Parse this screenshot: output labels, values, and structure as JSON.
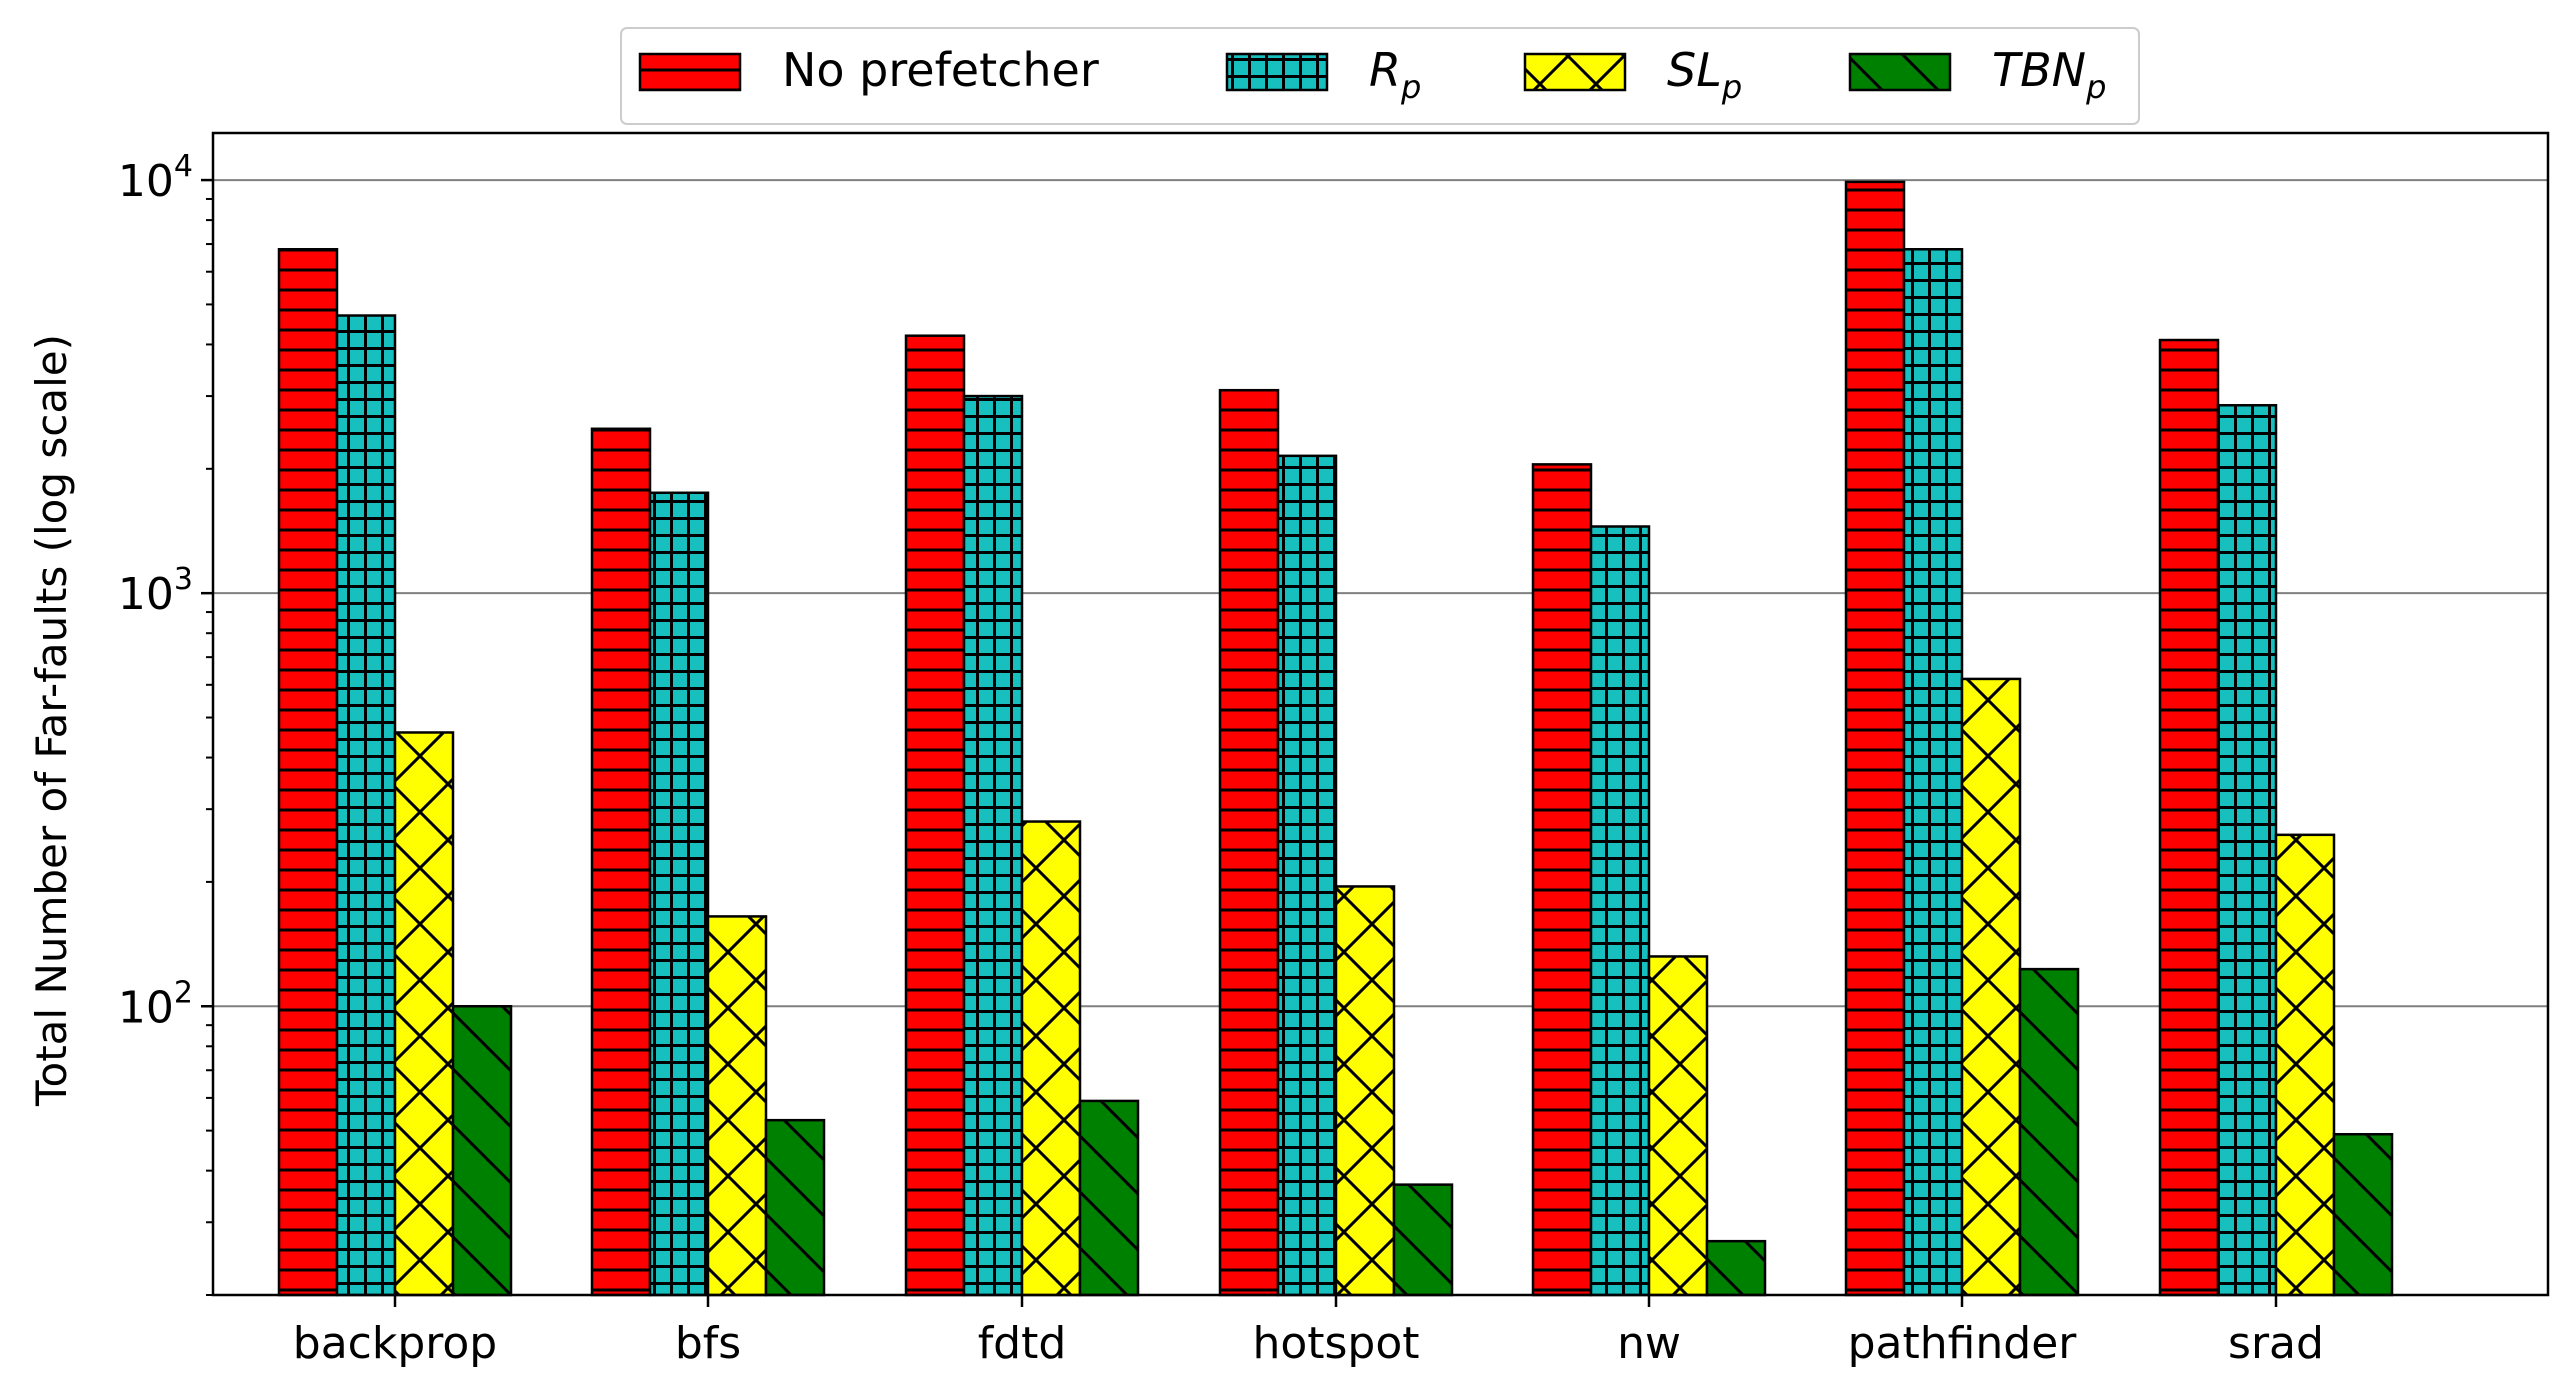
{
  "chart_data": {
    "type": "bar",
    "ylabel": "Total Number of Far-faults (log scale)",
    "xlabel": "",
    "yscale": "log",
    "ylim": [
      20,
      13000
    ],
    "yticks": [
      {
        "value": 100,
        "base": "10",
        "exp": "2"
      },
      {
        "value": 1000,
        "base": "10",
        "exp": "3"
      },
      {
        "value": 10000,
        "base": "10",
        "exp": "4"
      }
    ],
    "grid": "horizontal-major",
    "legend_placement": "top-center",
    "categories": [
      "backprop",
      "bfs",
      "fdtd",
      "hotspot",
      "nw",
      "pathfinder",
      "srad"
    ],
    "series": [
      {
        "name": "No prefetcher",
        "legend_base": "No prefetcher",
        "legend_sub": "",
        "italic": false,
        "color": "#ff0000",
        "hatch": "horizontal",
        "values": [
          6800,
          2500,
          4200,
          3100,
          2050,
          9900,
          4100
        ]
      },
      {
        "name": "R_p",
        "legend_base": "R",
        "legend_sub": "p",
        "italic": true,
        "color": "#17bfbf",
        "hatch": "grid",
        "values": [
          4700,
          1750,
          3000,
          2150,
          1450,
          6800,
          2850
        ]
      },
      {
        "name": "SL_p",
        "legend_base": "SL",
        "legend_sub": "p",
        "italic": true,
        "color": "#ffff00",
        "hatch": "crosshatch",
        "values": [
          460,
          165,
          280,
          195,
          132,
          620,
          260
        ]
      },
      {
        "name": "TBN_p",
        "legend_base": "TBN",
        "legend_sub": "p",
        "italic": true,
        "color": "#008000",
        "hatch": "diagonal",
        "values": [
          100,
          53,
          59,
          37,
          27,
          123,
          49
        ]
      }
    ]
  }
}
